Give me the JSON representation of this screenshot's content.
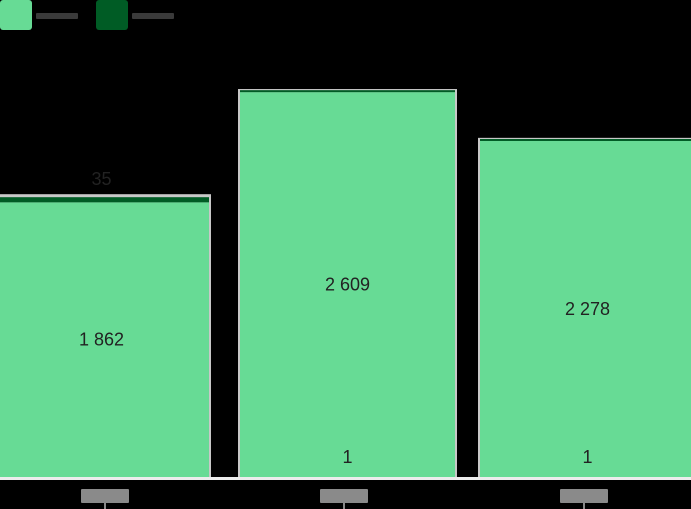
{
  "chart_data": {
    "type": "bar",
    "stacked": true,
    "categories": [
      "",
      "",
      ""
    ],
    "series": [
      {
        "name": "",
        "color": "#67db95",
        "values": [
          1862,
          2609,
          2278
        ]
      },
      {
        "name": "",
        "color": "#005c25",
        "values": [
          35,
          1,
          1
        ]
      }
    ],
    "value_labels": [
      [
        "1 862",
        "2 609",
        "2 278"
      ],
      [
        "35",
        "1",
        "1"
      ]
    ],
    "legend_placement": "top-left",
    "gridlines": false,
    "ylim": [
      0,
      2900
    ]
  },
  "colors": {
    "background": "#000000",
    "bar_outline": "#c8c8c8",
    "baseline": "#ececec",
    "tick_label_bg": "#8a8a8a"
  }
}
